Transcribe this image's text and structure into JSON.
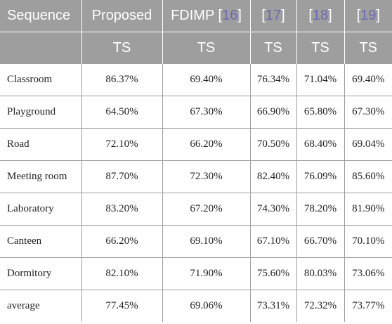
{
  "header": {
    "sequence": "Sequence",
    "columns": [
      {
        "name": "Proposed",
        "ref": ""
      },
      {
        "name": "FDIMP ",
        "ref": "16"
      },
      {
        "name": "",
        "ref": "17"
      },
      {
        "name": "",
        "ref": "18"
      },
      {
        "name": "",
        "ref": "19"
      }
    ],
    "metric": "TS"
  },
  "rows": [
    {
      "name": "Classroom",
      "values": [
        "86.37%",
        "69.40%",
        "76.34%",
        "71.04%",
        "69.40%"
      ]
    },
    {
      "name": "Playground",
      "values": [
        "64.50%",
        "67.30%",
        "66.90%",
        "65.80%",
        "67.30%"
      ]
    },
    {
      "name": "Road",
      "values": [
        "72.10%",
        "66.20%",
        "70.50%",
        "68.40%",
        "69.04%"
      ]
    },
    {
      "name": "Meeting room",
      "values": [
        "87.70%",
        "72.30%",
        "82.40%",
        "76.09%",
        "85.60%"
      ]
    },
    {
      "name": "Laboratory",
      "values": [
        "83.20%",
        "67.20%",
        "74.30%",
        "78.20%",
        "81.90%"
      ]
    },
    {
      "name": "Canteen",
      "values": [
        "66.20%",
        "69.10%",
        "67.10%",
        "66.70%",
        "70.10%"
      ]
    },
    {
      "name": "Dormitory",
      "values": [
        "82.10%",
        "71.90%",
        "75.60%",
        "80.03%",
        "73.06%"
      ]
    },
    {
      "name": "average",
      "values": [
        "77.45%",
        "69.06%",
        "73.31%",
        "72.32%",
        "73.77%"
      ]
    }
  ]
}
